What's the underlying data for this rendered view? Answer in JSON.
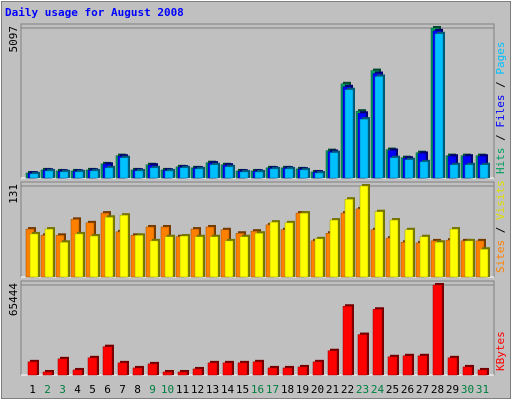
{
  "title": "Daily usage for August 2008",
  "legend_separator": " / ",
  "chart_data": [
    {
      "type": "bar",
      "ylim": [
        0,
        5097
      ],
      "yticks": [
        5097
      ],
      "series": [
        {
          "name": "Hits",
          "color": "#00a060",
          "values": [
            170,
            275,
            240,
            240,
            275,
            480,
            760,
            275,
            450,
            275,
            380,
            345,
            520,
            450,
            240,
            240,
            345,
            345,
            310,
            205,
            930,
            3200,
            2270,
            3650,
            965,
            690,
            860,
            5097,
            760,
            760,
            760
          ]
        },
        {
          "name": "Files",
          "color": "#0000ff",
          "values": [
            165,
            265,
            230,
            230,
            265,
            465,
            740,
            265,
            435,
            265,
            370,
            335,
            505,
            435,
            230,
            230,
            335,
            335,
            300,
            200,
            900,
            3100,
            2200,
            3550,
            935,
            670,
            835,
            5000,
            740,
            740,
            740
          ]
        },
        {
          "name": "Pages",
          "color": "#00c0ff",
          "values": [
            140,
            240,
            210,
            210,
            240,
            345,
            690,
            240,
            345,
            240,
            345,
            310,
            450,
            380,
            205,
            205,
            310,
            310,
            275,
            170,
            860,
            3000,
            2000,
            3450,
            690,
            620,
            550,
            4900,
            450,
            450,
            450
          ]
        }
      ]
    },
    {
      "type": "bar",
      "ylim": [
        0,
        131
      ],
      "yticks": [
        131
      ],
      "series": [
        {
          "name": "Sites",
          "color": "#ff8000",
          "values": [
            69,
            60,
            60,
            83,
            78,
            92,
            65,
            60,
            72,
            72,
            58,
            69,
            72,
            68,
            63,
            66,
            75,
            68,
            92,
            52,
            63,
            92,
            98,
            68,
            56,
            50,
            49,
            52,
            53,
            52,
            52
          ]
        },
        {
          "name": "Visits",
          "color": "#ffff00",
          "values": [
            62,
            69,
            50,
            62,
            59,
            86,
            89,
            60,
            52,
            58,
            59,
            58,
            58,
            52,
            58,
            63,
            79,
            78,
            92,
            55,
            82,
            112,
            131,
            94,
            82,
            68,
            58,
            50,
            69,
            52,
            40
          ]
        }
      ]
    },
    {
      "type": "bar",
      "ylim": [
        0,
        65444
      ],
      "yticks": [
        65444
      ],
      "series": [
        {
          "name": "KBytes",
          "color": "#ff0000",
          "values": [
            9560,
            2200,
            11760,
            3680,
            12500,
            20590,
            8820,
            5150,
            8090,
            2200,
            2200,
            4410,
            8820,
            8820,
            8820,
            9560,
            5150,
            5150,
            5880,
            9560,
            17650,
            50000,
            29400,
            47800,
            13240,
            13970,
            13970,
            65444,
            12500,
            5880,
            3680
          ]
        }
      ],
      "categories": [
        "1",
        "2",
        "3",
        "4",
        "5",
        "6",
        "7",
        "8",
        "9",
        "10",
        "11",
        "12",
        "13",
        "14",
        "15",
        "16",
        "17",
        "18",
        "19",
        "20",
        "21",
        "22",
        "23",
        "24",
        "25",
        "26",
        "27",
        "28",
        "29",
        "30",
        "31"
      ],
      "category_colors": [
        "#000000",
        "#008040",
        "#008040",
        "#000000",
        "#000000",
        "#000000",
        "#000000",
        "#000000",
        "#008040",
        "#008040",
        "#000000",
        "#000000",
        "#000000",
        "#000000",
        "#000000",
        "#008040",
        "#008040",
        "#000000",
        "#000000",
        "#000000",
        "#000000",
        "#000000",
        "#008040",
        "#008040",
        "#000000",
        "#000000",
        "#000000",
        "#000000",
        "#000000",
        "#008040",
        "#008040"
      ]
    }
  ]
}
